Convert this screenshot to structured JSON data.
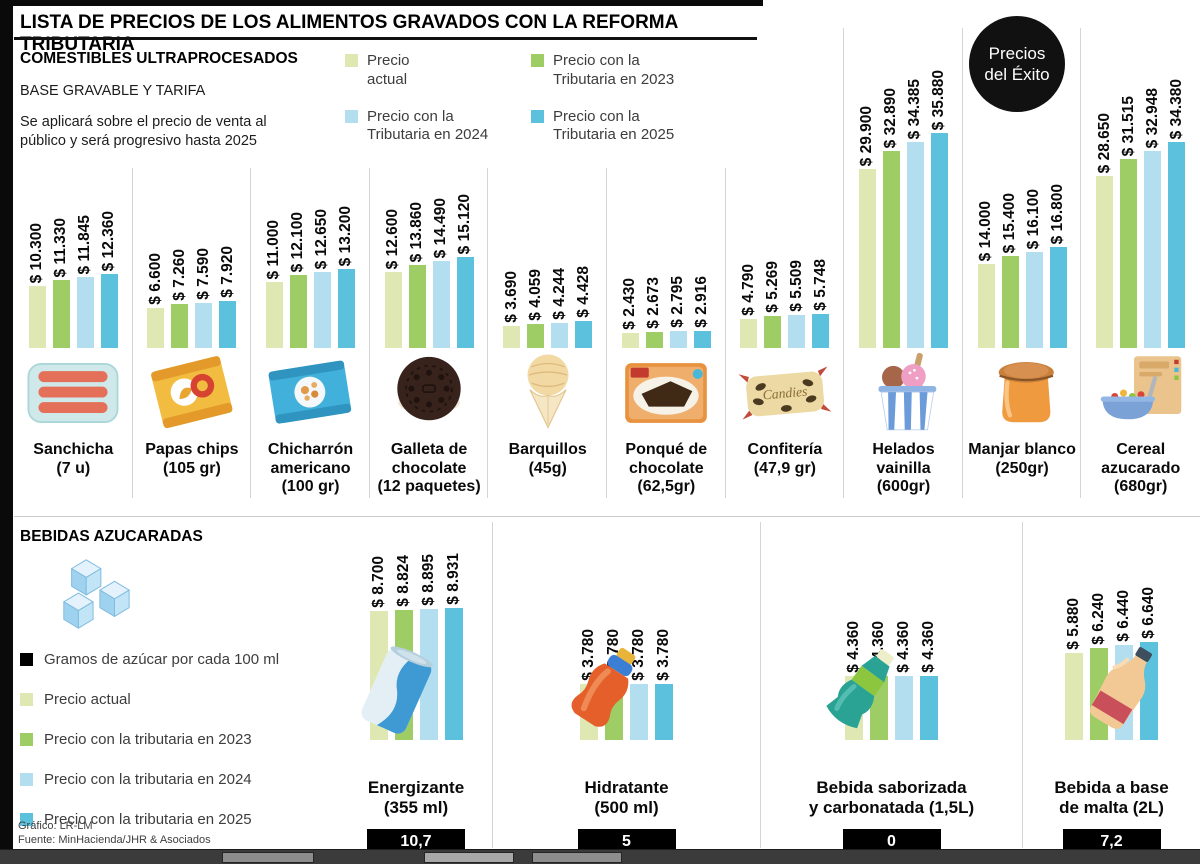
{
  "header": {
    "title": "LISTA DE PRECIOS DE LOS ALIMENTOS GRAVADOS CON LA REFORMA TRIBUTARIA"
  },
  "badge": {
    "line1": "Precios",
    "line2": "del Éxito"
  },
  "top_section": {
    "heading": "COMESTIBLES ULTRAPROCESADOS",
    "subheading": "BASE GRAVABLE Y TARIFA",
    "description": "Se aplicará sobre el precio de venta al\npúblico y será progresivo hasta 2025",
    "legend_labels": [
      "Precio\nactual",
      "Precio con la\nTributaria en 2023",
      "Precio con la\nTributaria en 2024",
      "Precio con la\nTributaria en 2025"
    ]
  },
  "bebidas_section": {
    "heading": "BEBIDAS AZUCARADAS",
    "sugar_legend": "Gramos de azúcar por cada 100 ml",
    "legend_labels": [
      "Precio actual",
      "Precio con la tributaria en 2023",
      "Precio con la tributaria en 2024",
      "Precio con la tributaria en 2025"
    ]
  },
  "footer": {
    "credit": "Gráfico: LR-LM",
    "source": "Fuente: MinHacienda/JHR & Asociados"
  },
  "colors": {
    "series": [
      "#dfe8b2",
      "#9ecd65",
      "#b2def0",
      "#5cc1dc"
    ],
    "sugar_swatch": "#000000",
    "badge_bg": "#111111"
  },
  "chart_data": [
    {
      "type": "bar",
      "title": "COMESTIBLES ULTRAPROCESADOS",
      "subtitle": "BASE GRAVABLE Y TARIFA",
      "note": "Se aplicará sobre el precio de venta al público y será progresivo hasta 2025",
      "series": [
        "Precio actual",
        "Precio con la Tributaria en 2023",
        "Precio con la Tributaria en 2024",
        "Precio con la Tributaria en 2025"
      ],
      "ylim": [
        0,
        35880
      ],
      "legend_position": "top",
      "grid": false,
      "products": [
        {
          "name": "Sanchicha",
          "size": "(7 u)",
          "icon": "sausages",
          "values": [
            10300,
            11330,
            11845,
            12360
          ],
          "labels": [
            "$ 10.300",
            "$ 11.330",
            "$ 11.845",
            "$ 12.360"
          ]
        },
        {
          "name": "Papas chips",
          "size": "(105 gr)",
          "icon": "chips",
          "values": [
            6600,
            7260,
            7590,
            7920
          ],
          "labels": [
            "$ 6.600",
            "$ 7.260",
            "$ 7.590",
            "$ 7.920"
          ]
        },
        {
          "name": "Chicharrón\namericano",
          "size": "(100 gr)",
          "icon": "chicharron",
          "values": [
            11000,
            12100,
            12650,
            13200
          ],
          "labels": [
            "$ 11.000",
            "$ 12.100",
            "$ 12.650",
            "$ 13.200"
          ]
        },
        {
          "name": "Galleta de\nchocolate",
          "size": "(12 paquetes)",
          "icon": "cookie",
          "values": [
            12600,
            13860,
            14490,
            15120
          ],
          "labels": [
            "$ 12.600",
            "$ 13.860",
            "$ 14.490",
            "$ 15.120"
          ]
        },
        {
          "name": "Barquillos",
          "size": "(45g)",
          "icon": "barquillo",
          "values": [
            3690,
            4059,
            4244,
            4428
          ],
          "labels": [
            "$ 3.690",
            "$ 4.059",
            "$ 4.244",
            "$ 4.428"
          ]
        },
        {
          "name": "Ponqué de\nchocolate",
          "size": "(62,5gr)",
          "icon": "ponque",
          "values": [
            2430,
            2673,
            2795,
            2916
          ],
          "labels": [
            "$ 2.430",
            "$ 2.673",
            "$ 2.795",
            "$ 2.916"
          ]
        },
        {
          "name": "Confitería",
          "size": "(47,9 gr)",
          "icon": "candies",
          "values": [
            4790,
            5269,
            5509,
            5748
          ],
          "labels": [
            "$ 4.790",
            "$ 5.269",
            "$ 5.509",
            "$ 5.748"
          ]
        },
        {
          "name": "Helados\nvainilla",
          "size": "(600gr)",
          "icon": "icecream",
          "values": [
            29900,
            32890,
            34385,
            35880
          ],
          "labels": [
            "$ 29.900",
            "$ 32.890",
            "$ 34.385",
            "$ 35.880"
          ]
        },
        {
          "name": "Manjar blanco",
          "size": "(250gr)",
          "icon": "jar",
          "values": [
            14000,
            15400,
            16100,
            16800
          ],
          "labels": [
            "$ 14.000",
            "$ 15.400",
            "$ 16.100",
            "$ 16.800"
          ]
        },
        {
          "name": "Cereal\nazucarado",
          "size": "(680gr)",
          "icon": "cereal",
          "values": [
            28650,
            31515,
            32948,
            34380
          ],
          "labels": [
            "$ 28.650",
            "$ 31.515",
            "$ 32.948",
            "$ 34.380"
          ]
        }
      ]
    },
    {
      "type": "bar",
      "title": "BEBIDAS AZUCARADAS",
      "sugar_note": "Gramos de azúcar por cada 100 ml",
      "series": [
        "Precio actual",
        "Precio con la tributaria en 2023",
        "Precio con la tributaria en 2024",
        "Precio con la tributaria en 2025"
      ],
      "ylim": [
        0,
        8931
      ],
      "grid": false,
      "products": [
        {
          "name": "Energizante",
          "size": "(355 ml)",
          "icon": "can",
          "values": [
            8700,
            8824,
            8895,
            8931
          ],
          "labels": [
            "$ 8.700",
            "$ 8.824",
            "$ 8.895",
            "$ 8.931"
          ],
          "sugar": "10,7"
        },
        {
          "name": "Hidratante",
          "size": "(500 ml)",
          "icon": "sportbottle",
          "values": [
            3780,
            3780,
            3780,
            3780
          ],
          "labels": [
            "$ 3.780",
            "$ 3.780",
            "$ 3.780",
            "$ 3.780"
          ],
          "sugar": "5"
        },
        {
          "name": "Bebida saborizada",
          "size": "y carbonatada (1,5L)",
          "icon": "sodabottle",
          "values": [
            4360,
            4360,
            4360,
            4360
          ],
          "labels": [
            "$ 4.360",
            "$ 4.360",
            "$ 4.360",
            "$ 4.360"
          ],
          "sugar": "0"
        },
        {
          "name": "Bebida a base",
          "size": "de malta (2L)",
          "icon": "maltabottle",
          "values": [
            5880,
            6240,
            6440,
            6640
          ],
          "labels": [
            "$ 5.880",
            "$ 6.240",
            "$ 6.440",
            "$ 6.640"
          ],
          "sugar": "7,2"
        }
      ]
    }
  ]
}
